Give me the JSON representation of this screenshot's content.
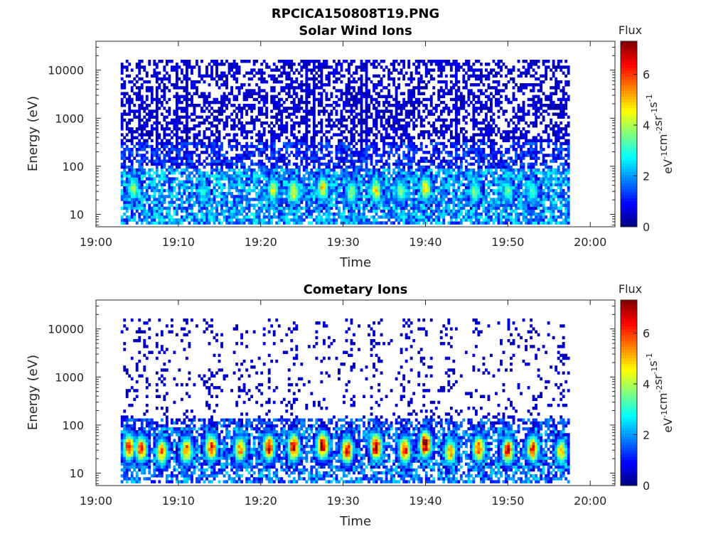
{
  "figure_title": "RPCICA150808T19.PNG",
  "colorbar": {
    "label": "Flux",
    "unit_parts": [
      "eV",
      "-1",
      "cm",
      "-2",
      "sr",
      "-1",
      "s",
      "-1"
    ],
    "range": [
      0,
      7.3
    ],
    "ticks": [
      "0",
      "2",
      "4",
      "6"
    ],
    "colormap": "jet"
  },
  "chart_data": [
    {
      "type": "heatmap",
      "title": "Solar Wind Ions",
      "xlabel": "Time",
      "ylabel": "Energy (eV)",
      "yscale": "log",
      "ylim": [
        5.5,
        40000
      ],
      "xlim": [
        "19:00",
        "20:03"
      ],
      "data_time_range": [
        "19:03",
        "19:57.5"
      ],
      "xticks": [
        "19:00",
        "19:10",
        "19:20",
        "19:30",
        "19:40",
        "19:50",
        "20:00"
      ],
      "yticks": [
        "10",
        "100",
        "1000",
        "10000"
      ],
      "flux_range": [
        0,
        7.3
      ],
      "peaks": [
        {
          "time": "19:04.5",
          "energy": 35,
          "flux": 3.8
        },
        {
          "time": "19:13",
          "energy": 30,
          "flux": 3.0
        },
        {
          "time": "19:21.5",
          "energy": 32,
          "flux": 4.2
        },
        {
          "time": "19:24",
          "energy": 30,
          "flux": 4.6
        },
        {
          "time": "19:27.5",
          "energy": 35,
          "flux": 4.8
        },
        {
          "time": "19:31",
          "energy": 28,
          "flux": 4.0
        },
        {
          "time": "19:34",
          "energy": 32,
          "flux": 4.6
        },
        {
          "time": "19:37",
          "energy": 30,
          "flux": 3.6
        },
        {
          "time": "19:40",
          "energy": 35,
          "flux": 4.8
        },
        {
          "time": "19:46",
          "energy": 30,
          "flux": 3.8
        },
        {
          "time": "19:50",
          "energy": 30,
          "flux": 3.4
        },
        {
          "time": "19:53",
          "energy": 30,
          "flux": 3.4
        }
      ]
    },
    {
      "type": "heatmap",
      "title": "Cometary Ions",
      "xlabel": "Time",
      "ylabel": "Energy (eV)",
      "yscale": "log",
      "ylim": [
        5.5,
        40000
      ],
      "xlim": [
        "19:00",
        "20:03"
      ],
      "data_time_range": [
        "19:03",
        "19:57.5"
      ],
      "xticks": [
        "19:00",
        "19:10",
        "19:20",
        "19:30",
        "19:40",
        "19:50",
        "20:00"
      ],
      "yticks": [
        "10",
        "100",
        "1000",
        "10000"
      ],
      "flux_range": [
        0,
        7.3
      ],
      "peaks": [
        {
          "time": "19:04",
          "energy": 35,
          "flux": 6.3
        },
        {
          "time": "19:05.5",
          "energy": 32,
          "flux": 6.0
        },
        {
          "time": "19:08",
          "energy": 28,
          "flux": 5.5
        },
        {
          "time": "19:11",
          "energy": 30,
          "flux": 5.8
        },
        {
          "time": "19:14",
          "energy": 35,
          "flux": 6.2
        },
        {
          "time": "19:17.5",
          "energy": 32,
          "flux": 5.6
        },
        {
          "time": "19:21",
          "energy": 35,
          "flux": 6.6
        },
        {
          "time": "19:24",
          "energy": 35,
          "flux": 6.8
        },
        {
          "time": "19:27.5",
          "energy": 38,
          "flux": 7.0
        },
        {
          "time": "19:30.5",
          "energy": 30,
          "flux": 6.5
        },
        {
          "time": "19:34",
          "energy": 35,
          "flux": 7.0
        },
        {
          "time": "19:37.5",
          "energy": 30,
          "flux": 6.2
        },
        {
          "time": "19:40",
          "energy": 40,
          "flux": 7.2
        },
        {
          "time": "19:43",
          "energy": 28,
          "flux": 5.4
        },
        {
          "time": "19:46.5",
          "energy": 32,
          "flux": 6.0
        },
        {
          "time": "19:50",
          "energy": 30,
          "flux": 6.5
        },
        {
          "time": "19:53",
          "energy": 32,
          "flux": 6.2
        },
        {
          "time": "19:56.5",
          "energy": 28,
          "flux": 5.0
        }
      ]
    }
  ]
}
